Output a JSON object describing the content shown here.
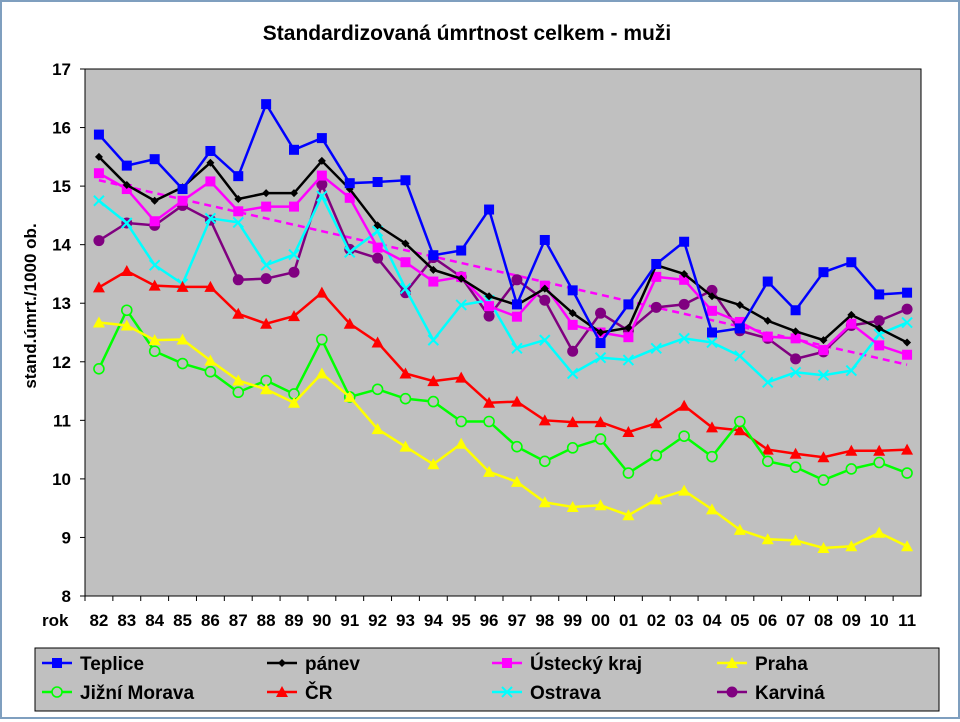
{
  "chart_data": {
    "type": "line",
    "title": "Standardizovaná úmrtnost celkem - muži",
    "ylabel": "stand.úmrt./1000 ob.",
    "xlabel": "rok",
    "ylim": [
      8,
      17
    ],
    "yticks": [
      "8",
      "9",
      "10",
      "11",
      "12",
      "13",
      "14",
      "15",
      "16",
      "17"
    ],
    "categories": [
      "82",
      "83",
      "84",
      "85",
      "86",
      "87",
      "88",
      "89",
      "90",
      "91",
      "92",
      "93",
      "94",
      "95",
      "96",
      "97",
      "98",
      "99",
      "00",
      "01",
      "02",
      "03",
      "04",
      "05",
      "06",
      "07",
      "08",
      "09",
      "10",
      "11"
    ],
    "grid": false,
    "plot_background": "#c0c0c0",
    "legend_position": "bottom",
    "series": [
      {
        "name": "Teplice",
        "color": "#0000ff",
        "marker": "square",
        "values": [
          15.88,
          15.35,
          15.46,
          14.95,
          15.6,
          15.17,
          16.4,
          15.62,
          15.82,
          15.05,
          15.07,
          15.1,
          13.82,
          13.9,
          14.6,
          12.98,
          14.08,
          13.22,
          12.32,
          12.98,
          13.67,
          14.05,
          12.5,
          12.57,
          13.37,
          12.88,
          13.53,
          13.7,
          13.15,
          13.18
        ]
      },
      {
        "name": "pánev",
        "color": "#000000",
        "marker": "diamond",
        "values": [
          15.5,
          15.02,
          14.75,
          14.98,
          15.4,
          14.78,
          14.88,
          14.88,
          15.43,
          14.95,
          14.33,
          14.02,
          13.57,
          13.42,
          13.12,
          12.97,
          13.25,
          12.83,
          12.5,
          12.58,
          13.65,
          13.5,
          13.12,
          12.97,
          12.7,
          12.52,
          12.37,
          12.8,
          12.57,
          12.33
        ]
      },
      {
        "name": "Ústecký kraj",
        "color": "#ff00ff",
        "marker": "square",
        "values": [
          15.22,
          14.95,
          14.4,
          14.75,
          15.08,
          14.57,
          14.65,
          14.65,
          15.18,
          14.8,
          13.95,
          13.7,
          13.37,
          13.45,
          12.95,
          12.77,
          13.3,
          12.63,
          12.5,
          12.42,
          13.45,
          13.4,
          12.87,
          12.68,
          12.43,
          12.4,
          12.2,
          12.65,
          12.28,
          12.12
        ]
      },
      {
        "name": "Praha",
        "color": "#ffff00",
        "marker": "triangle",
        "values": [
          12.67,
          12.62,
          12.37,
          12.38,
          12.02,
          11.68,
          11.53,
          11.3,
          11.8,
          11.4,
          10.85,
          10.55,
          10.25,
          10.6,
          10.12,
          9.95,
          9.6,
          9.52,
          9.55,
          9.38,
          9.65,
          9.8,
          9.48,
          9.13,
          8.97,
          8.95,
          8.82,
          8.85,
          9.08,
          8.85
        ]
      },
      {
        "name": "Jižní Morava",
        "color": "#00ff00",
        "marker": "circle-open",
        "values": [
          11.88,
          12.88,
          12.18,
          11.97,
          11.83,
          11.48,
          11.68,
          11.45,
          12.38,
          11.4,
          11.53,
          11.37,
          11.32,
          10.98,
          10.98,
          10.55,
          10.3,
          10.53,
          10.68,
          10.1,
          10.4,
          10.73,
          10.38,
          10.98,
          10.3,
          10.2,
          9.98,
          10.17,
          10.28,
          10.1
        ]
      },
      {
        "name": "ČR",
        "color": "#ff0000",
        "marker": "triangle",
        "values": [
          13.27,
          13.55,
          13.3,
          13.28,
          13.28,
          12.82,
          12.65,
          12.78,
          13.18,
          12.65,
          12.33,
          11.8,
          11.67,
          11.73,
          11.3,
          11.32,
          11.0,
          10.97,
          10.97,
          10.8,
          10.95,
          11.25,
          10.88,
          10.83,
          10.5,
          10.43,
          10.37,
          10.48,
          10.48,
          10.5
        ]
      },
      {
        "name": "Ostrava",
        "color": "#00ffff",
        "marker": "x",
        "values": [
          14.75,
          14.37,
          13.65,
          13.33,
          14.45,
          14.38,
          13.65,
          13.83,
          14.83,
          13.87,
          14.23,
          13.25,
          12.37,
          12.97,
          13.05,
          12.23,
          12.37,
          11.8,
          12.07,
          12.03,
          12.23,
          12.4,
          12.33,
          12.1,
          11.65,
          11.82,
          11.77,
          11.85,
          12.47,
          12.67
        ]
      },
      {
        "name": "Karviná",
        "color": "#800080",
        "marker": "circle",
        "values": [
          14.07,
          14.37,
          14.33,
          14.67,
          14.42,
          13.4,
          13.42,
          13.53,
          15.03,
          13.92,
          13.77,
          13.18,
          13.78,
          13.45,
          12.78,
          13.4,
          13.05,
          12.18,
          12.83,
          12.53,
          12.93,
          12.98,
          13.22,
          12.53,
          12.4,
          12.05,
          12.17,
          12.62,
          12.7,
          12.9
        ]
      }
    ],
    "trendline": {
      "color": "#ff00ff",
      "style": "dashed",
      "start": 15.1,
      "end": 11.95
    }
  }
}
